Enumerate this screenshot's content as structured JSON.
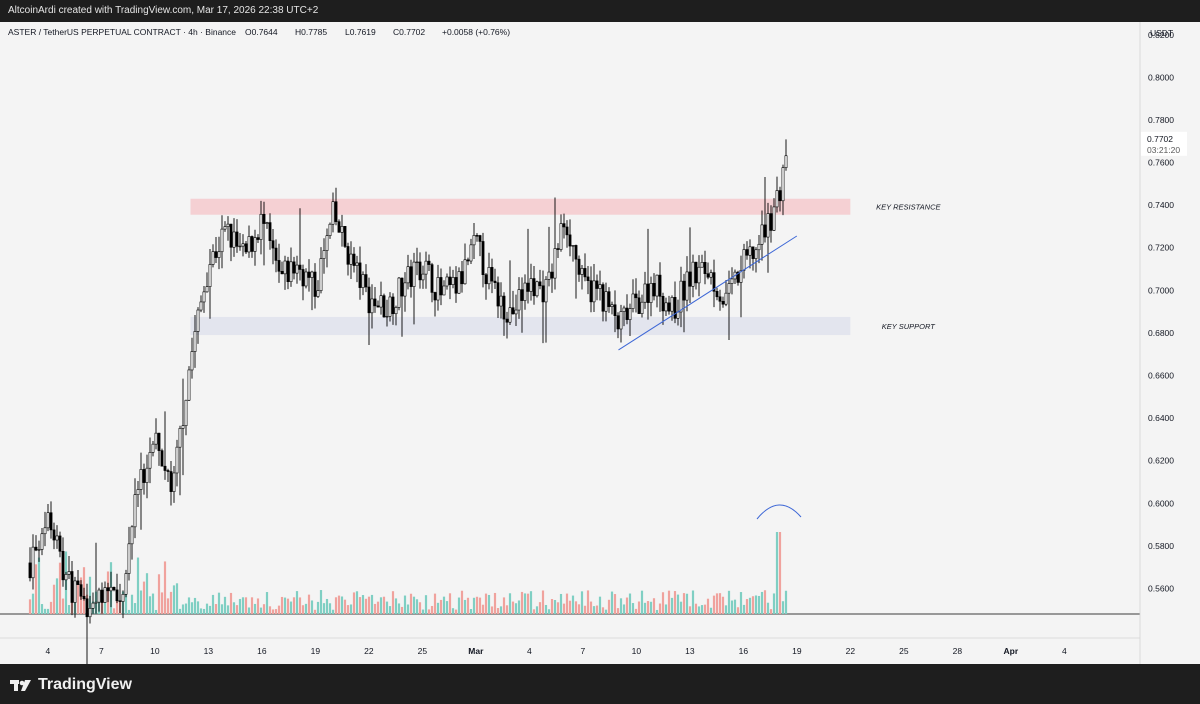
{
  "header": {
    "attribution": "AltcoinArdi created with TradingView.com, Mar 17, 2026 22:38 UTC+2",
    "symbol": "ASTER / TetherUS PERPETUAL CONTRACT · 4h · Binance",
    "open": "O0.7644",
    "high": "H0.7785",
    "low": "L0.7619",
    "close": "C0.7702",
    "change": "+0.0058 (+0.76%)"
  },
  "footer": {
    "logo_text": "TradingView",
    "logo_icon": "tradingview-logo-icon"
  },
  "colors": {
    "background": "#f4f4f4",
    "candle_body": "#000000",
    "resistance_zone": "#f5c9cc",
    "support_zone": "#dfe2ec",
    "trendline": "#3d67d6",
    "volume_up": "#7fcfc3",
    "volume_down": "#f0a29d",
    "price_label": "#000000"
  },
  "chart_data": {
    "type": "candlestick",
    "title": "ASTER / TetherUS PERPETUAL CONTRACT · 4h · Binance",
    "currency": "USDT",
    "y_ticks": [
      "0.8200",
      "0.8000",
      "0.7800",
      "0.7600",
      "0.7400",
      "0.7200",
      "0.7000",
      "0.6800",
      "0.6600",
      "0.6400",
      "0.6200",
      "0.6000",
      "0.5800",
      "0.5600"
    ],
    "ylim": [
      0.548,
      0.826
    ],
    "x_labels": [
      "4",
      "7",
      "10",
      "13",
      "16",
      "19",
      "22",
      "25",
      "Mar",
      "4",
      "7",
      "10",
      "13",
      "16",
      "19",
      "22",
      "25",
      "28",
      "Apr",
      "4"
    ],
    "x_range": [
      "2026-02-03",
      "2026-04-04"
    ],
    "current_price": "0.7702",
    "countdown": "03:21:20",
    "zones": [
      {
        "label": "KEY RESISTANCE",
        "low": 0.7355,
        "high": 0.743
      },
      {
        "label": "KEY SUPPORT",
        "low": 0.679,
        "high": 0.6875
      }
    ],
    "trendline": {
      "from": {
        "date": "2026-03-08",
        "price": 0.672
      },
      "to": {
        "date": "2026-03-18",
        "price": 0.7255
      }
    },
    "price_anchors": [
      {
        "date": "2026-02-03",
        "price": 0.572
      },
      {
        "date": "2026-02-04",
        "price": 0.595
      },
      {
        "date": "2026-02-05",
        "price": 0.565
      },
      {
        "date": "2026-02-06",
        "price": 0.552
      },
      {
        "date": "2026-02-07",
        "price": 0.558
      },
      {
        "date": "2026-02-08",
        "price": 0.552
      },
      {
        "date": "2026-02-09",
        "price": 0.605
      },
      {
        "date": "2026-02-10",
        "price": 0.632
      },
      {
        "date": "2026-02-11",
        "price": 0.607
      },
      {
        "date": "2026-02-12",
        "price": 0.668
      },
      {
        "date": "2026-02-13",
        "price": 0.712
      },
      {
        "date": "2026-02-14",
        "price": 0.728
      },
      {
        "date": "2026-02-15",
        "price": 0.715
      },
      {
        "date": "2026-02-16",
        "price": 0.733
      },
      {
        "date": "2026-02-17",
        "price": 0.705
      },
      {
        "date": "2026-02-18",
        "price": 0.712
      },
      {
        "date": "2026-02-19",
        "price": 0.7
      },
      {
        "date": "2026-02-20",
        "price": 0.735
      },
      {
        "date": "2026-02-21",
        "price": 0.714
      },
      {
        "date": "2026-02-22",
        "price": 0.696
      },
      {
        "date": "2026-02-23",
        "price": 0.692
      },
      {
        "date": "2026-02-24",
        "price": 0.703
      },
      {
        "date": "2026-02-25",
        "price": 0.713
      },
      {
        "date": "2026-02-26",
        "price": 0.698
      },
      {
        "date": "2026-02-27",
        "price": 0.702
      },
      {
        "date": "2026-02-28",
        "price": 0.722
      },
      {
        "date": "2026-03-01",
        "price": 0.699
      },
      {
        "date": "2026-03-02",
        "price": 0.689
      },
      {
        "date": "2026-03-03",
        "price": 0.703
      },
      {
        "date": "2026-03-04",
        "price": 0.7
      },
      {
        "date": "2026-03-05",
        "price": 0.735
      },
      {
        "date": "2026-03-06",
        "price": 0.702
      },
      {
        "date": "2026-03-07",
        "price": 0.699
      },
      {
        "date": "2026-03-08",
        "price": 0.683
      },
      {
        "date": "2026-03-09",
        "price": 0.694
      },
      {
        "date": "2026-03-10",
        "price": 0.704
      },
      {
        "date": "2026-03-11",
        "price": 0.69
      },
      {
        "date": "2026-03-12",
        "price": 0.706
      },
      {
        "date": "2026-03-13",
        "price": 0.71
      },
      {
        "date": "2026-03-14",
        "price": 0.694
      },
      {
        "date": "2026-03-15",
        "price": 0.712
      },
      {
        "date": "2026-03-16",
        "price": 0.723
      },
      {
        "date": "2026-03-17",
        "price": 0.745
      },
      {
        "date": "2026-03-17T12:00",
        "price": 0.77
      }
    ],
    "volume_spike": {
      "date": "2026-03-17",
      "note": "highlighted with blue arc"
    }
  }
}
